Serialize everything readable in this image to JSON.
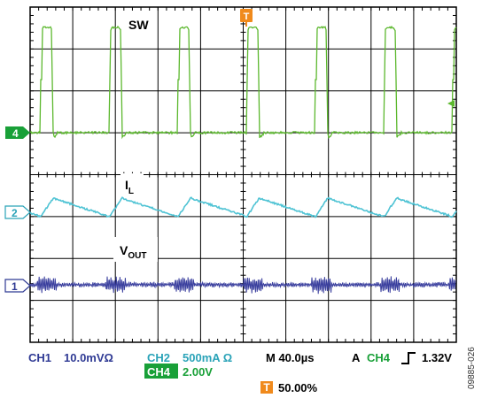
{
  "labels": {
    "sw": "SW",
    "il_main": "I",
    "il_sub": "L",
    "vout_main": "V",
    "vout_sub": "OUT",
    "trigger_marker": "T",
    "ch4_marker": "4",
    "ch2_marker": "2",
    "ch1_marker": "1"
  },
  "footer": {
    "ch1_name": "CH1",
    "ch1_scale": "10.0mVΩ",
    "ch2_name": "CH2",
    "ch2_scale": "500mA Ω",
    "ch4_name": "CH4",
    "ch4_scale": "2.00V",
    "timebase": "M 40.0µs",
    "trigger_mode": "A",
    "trigger_source": "CH4",
    "trigger_level": "1.32V",
    "trigger_position": "50.00%"
  },
  "figure_id": "09885-026",
  "colors": {
    "sw": "#5cb82e",
    "il": "#4fc3d4",
    "vout": "#3a3f9e",
    "trigger": "#f08a1c",
    "ch4_badge": "#19a038",
    "text_blue": "#2f3a94",
    "text_teal": "#2aa3b8",
    "text_green": "#19a038"
  },
  "icons": {
    "trigger_edge": "rising-edge-icon"
  }
}
